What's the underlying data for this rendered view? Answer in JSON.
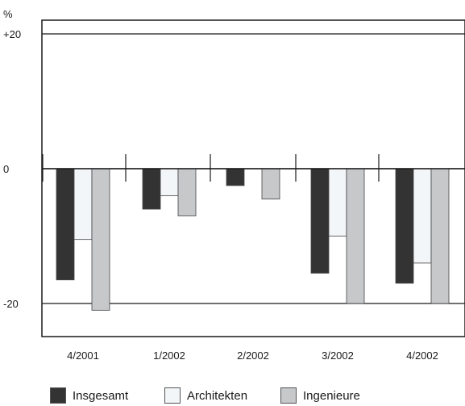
{
  "chart_data": {
    "type": "bar",
    "title": "",
    "xlabel": "",
    "ylabel": "%",
    "ylim": [
      -25,
      25
    ],
    "yticks": [
      {
        "value": 20,
        "label": "+20"
      },
      {
        "value": 0,
        "label": "0"
      },
      {
        "value": -20,
        "label": "-20"
      }
    ],
    "categories": [
      "4/2001",
      "1/2002",
      "2/2002",
      "3/2002",
      "4/2002"
    ],
    "series": [
      {
        "name": "Insgesamt",
        "color": "#333333",
        "values": [
          -16.5,
          -6,
          -2.5,
          -15.5,
          -17
        ]
      },
      {
        "name": "Architekten",
        "color": "#f3f6f8",
        "values": [
          -10.5,
          -4,
          null,
          -10,
          -14
        ]
      },
      {
        "name": "Ingenieure",
        "color": "#c6c8ca",
        "values": [
          -21,
          -7,
          -4.5,
          -20,
          -20
        ]
      }
    ],
    "grid": false,
    "legend_position": "bottom"
  }
}
